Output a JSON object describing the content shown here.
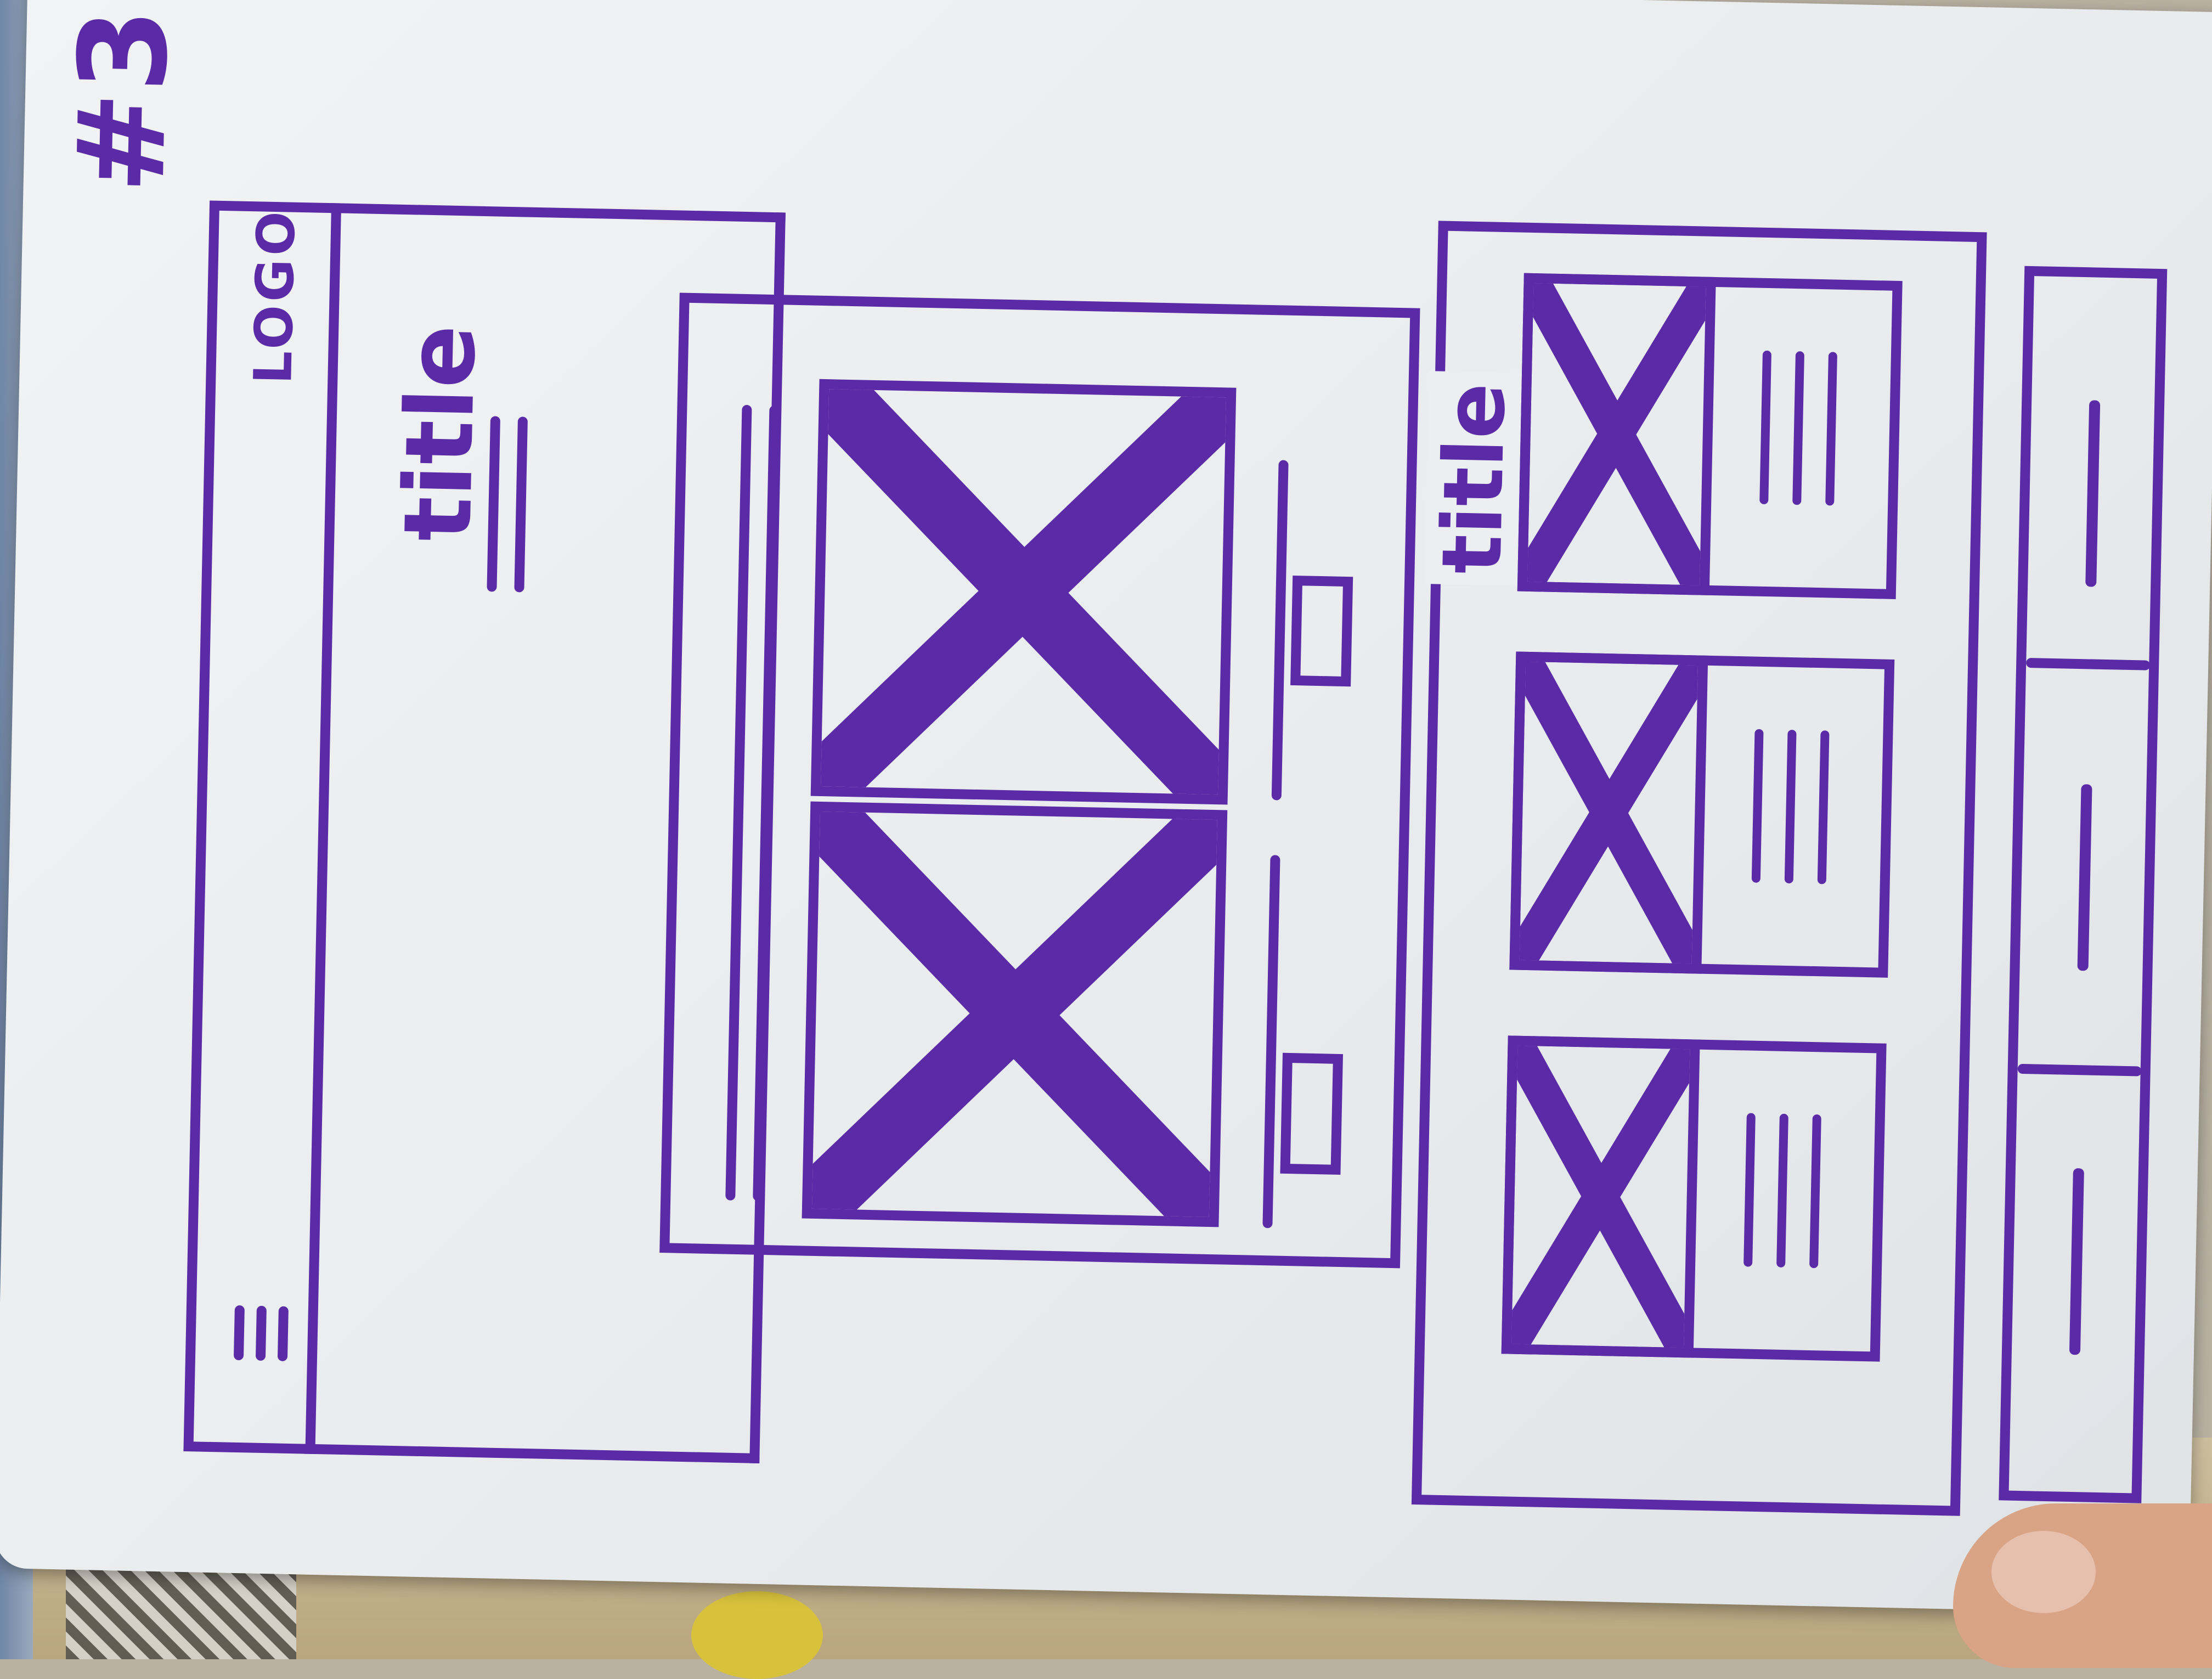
{
  "sketch": {
    "number": "#3",
    "header": {
      "logo_text": "LOGO"
    },
    "hero": {
      "title": "title"
    },
    "feed": {
      "title": "title"
    }
  },
  "colors": {
    "ink": "#5b2aa6",
    "board": "#eceff1"
  }
}
